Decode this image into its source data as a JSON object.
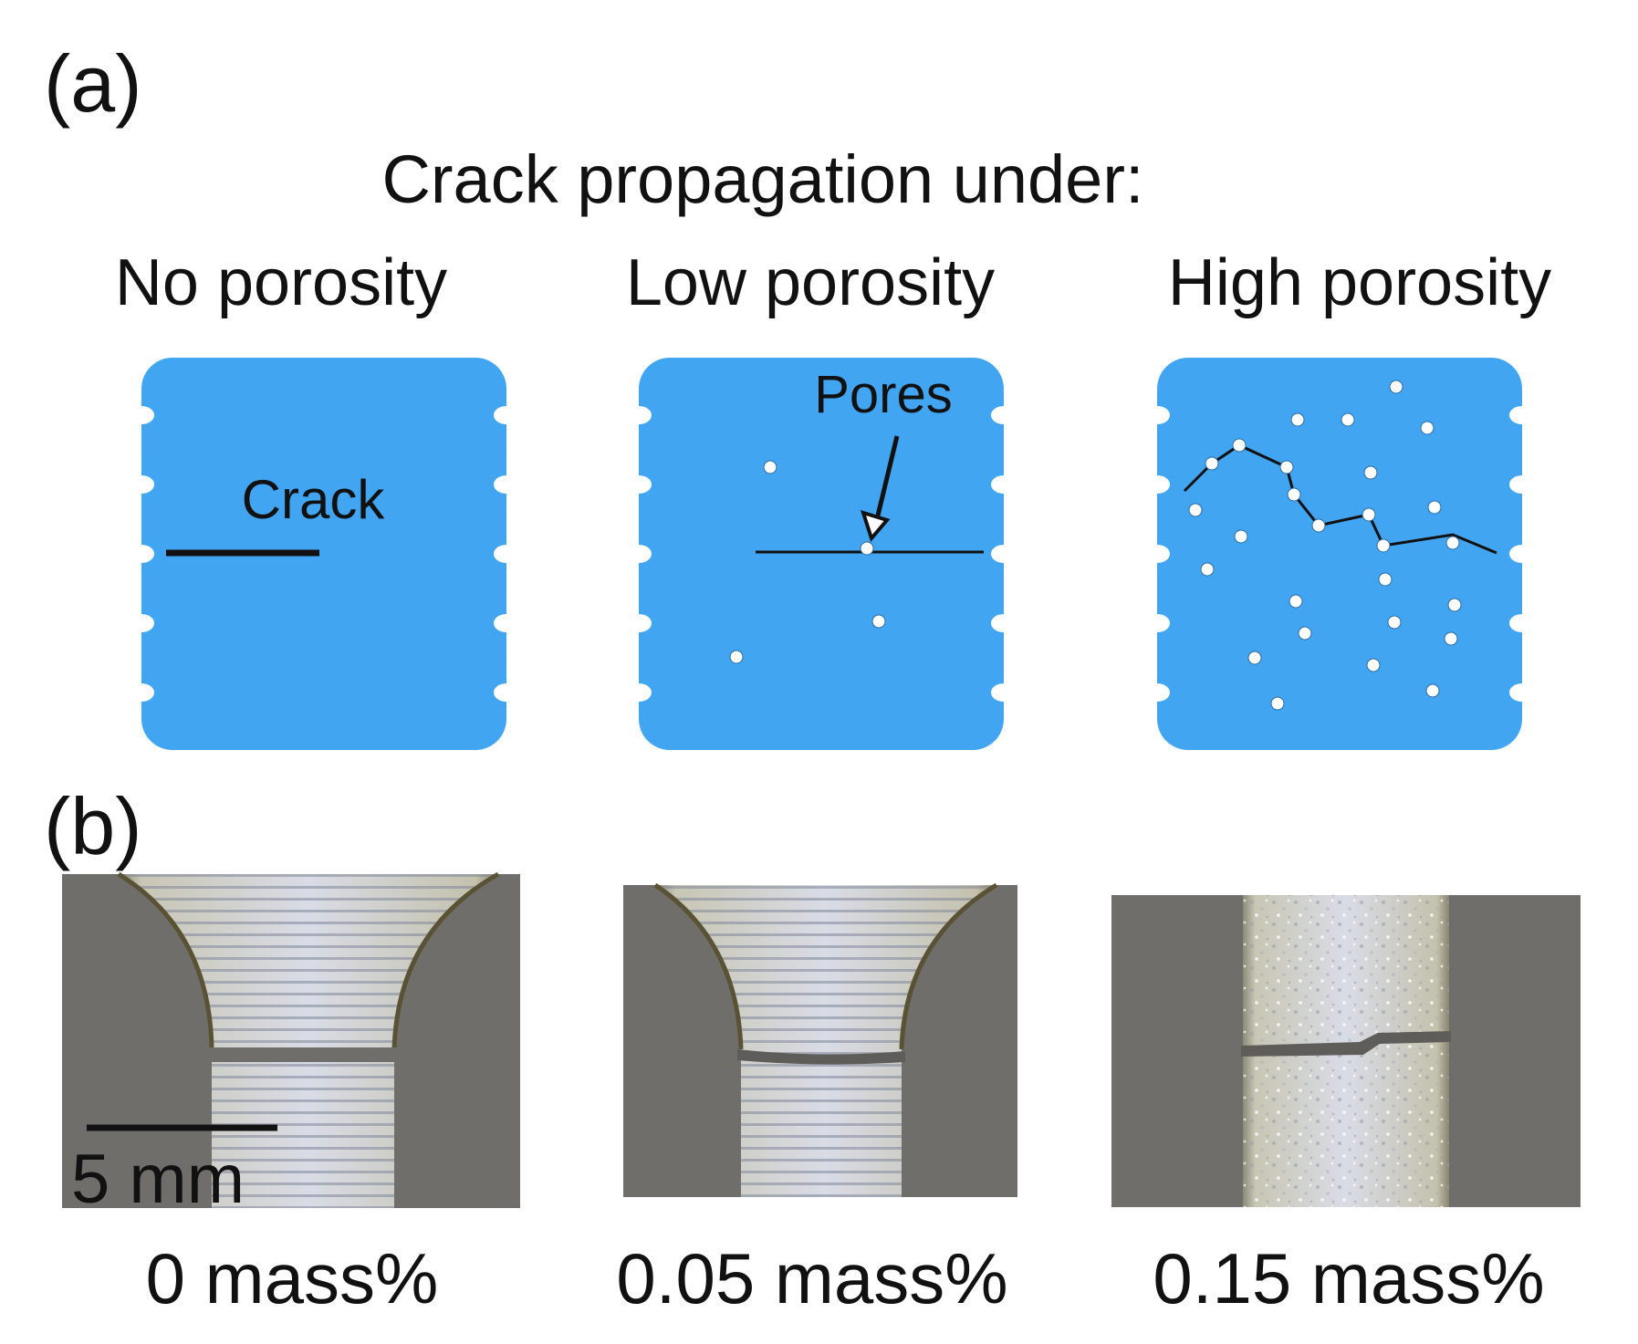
{
  "panel_a": {
    "label": "(a)",
    "heading": "Crack propagation under:",
    "columns": [
      {
        "title": "No porosity",
        "annotation": "Crack"
      },
      {
        "title": "Low porosity",
        "annotation": "Pores"
      },
      {
        "title": "High porosity",
        "annotation": ""
      }
    ]
  },
  "panel_b": {
    "label": "(b)",
    "scale_bar": "5 mm",
    "captions": [
      "0 mass%",
      "0.05 mass%",
      "0.15 mass%"
    ]
  },
  "colors": {
    "specimen_blue": "#42A5F2",
    "photo_background": "#6f6e6a",
    "specimen_metal": "#c9cdd8"
  }
}
